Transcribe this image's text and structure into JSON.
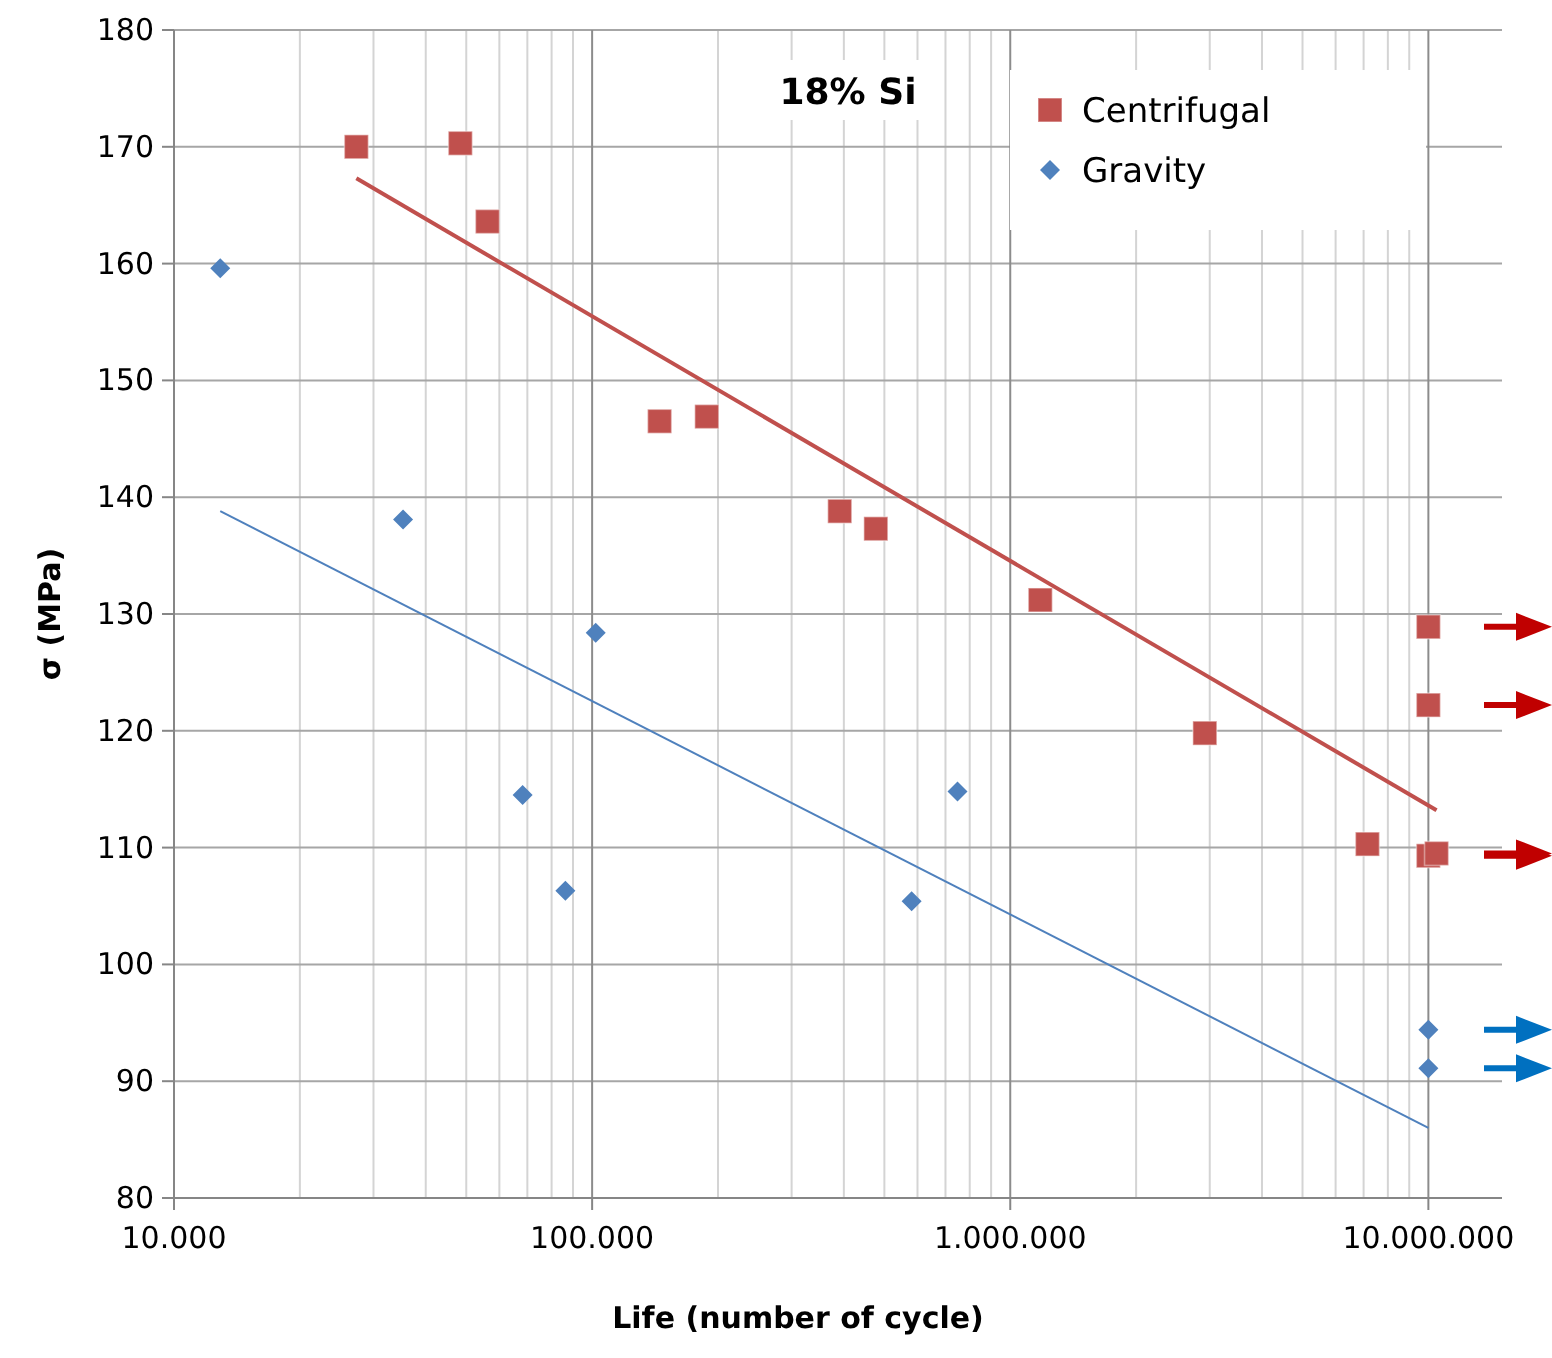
{
  "chart_data": {
    "type": "scatter",
    "log": "x",
    "grid": true,
    "legend": "top right",
    "xlabel": "Life (number of cycle)",
    "ylabel": "σ (MPa)",
    "annotations": [
      "18% Si"
    ],
    "xlim": [
      10000,
      15000000
    ],
    "xticks": [
      {
        "value": 10000,
        "label": "10.000"
      },
      {
        "value": 100000,
        "label": "100.000"
      },
      {
        "value": 1000000,
        "label": "1.000.000"
      },
      {
        "value": 10000000,
        "label": "10.000.000"
      }
    ],
    "ylim": [
      80,
      180
    ],
    "yticks": [
      80,
      90,
      100,
      110,
      120,
      130,
      140,
      150,
      160,
      170,
      180
    ],
    "series": [
      {
        "name": "Centrifugal",
        "color": "#c0504d",
        "marker": "square",
        "x": [
          27300,
          48400,
          56200,
          145000,
          188000,
          391000,
          477000,
          1180000,
          2920000,
          7150000,
          10000000,
          10000000,
          10000000,
          10460000
        ],
        "values": [
          170,
          170.3,
          163.6,
          146.5,
          146.9,
          138.8,
          137.3,
          131.2,
          119.8,
          110.3,
          128.9,
          122.2,
          109.3,
          109.5
        ]
      },
      {
        "name": "Gravity",
        "color": "#4f81bd",
        "marker": "diamond",
        "x": [
          12900,
          35300,
          68200,
          86300,
          102000,
          581000,
          748000,
          10000000,
          10000000
        ],
        "values": [
          159.6,
          138.1,
          114.5,
          106.3,
          128.4,
          105.4,
          114.8,
          94.4,
          91.1
        ]
      },
      {
        "type": "line",
        "color": "#c0504d",
        "x": [
          27300,
          10460000
        ],
        "values": [
          167.3,
          113.2
        ]
      },
      {
        "type": "line",
        "color": "#4f81bd",
        "x": [
          12900,
          10000000
        ],
        "values": [
          138.8,
          86
        ]
      }
    ]
  }
}
